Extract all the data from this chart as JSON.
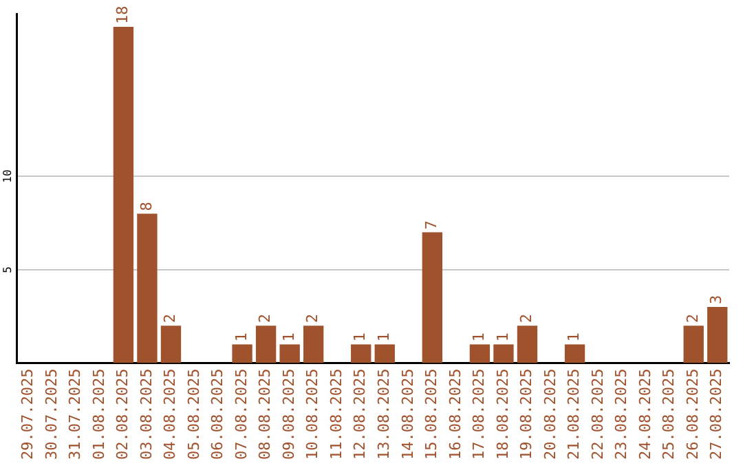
{
  "chart_data": {
    "type": "bar",
    "categories": [
      "29.07.2025",
      "30.07.2025",
      "31.07.2025",
      "01.08.2025",
      "02.08.2025",
      "03.08.2025",
      "04.08.2025",
      "05.08.2025",
      "06.08.2025",
      "07.08.2025",
      "08.08.2025",
      "09.08.2025",
      "10.08.2025",
      "11.08.2025",
      "12.08.2025",
      "13.08.2025",
      "14.08.2025",
      "15.08.2025",
      "16.08.2025",
      "17.08.2025",
      "18.08.2025",
      "19.08.2025",
      "20.08.2025",
      "21.08.2025",
      "22.08.2025",
      "23.08.2025",
      "24.08.2025",
      "25.08.2025",
      "26.08.2025",
      "27.08.2025"
    ],
    "values": [
      0,
      0,
      0,
      0,
      18,
      8,
      2,
      0,
      0,
      1,
      2,
      1,
      2,
      0,
      1,
      1,
      0,
      7,
      0,
      1,
      1,
      2,
      0,
      1,
      0,
      0,
      0,
      0,
      2,
      3
    ],
    "value_labels": [
      null,
      null,
      null,
      null,
      "18",
      "8",
      "2",
      null,
      null,
      "1",
      "2",
      "1",
      "2",
      null,
      "1",
      "1",
      null,
      "7",
      null,
      "1",
      "1",
      "2",
      null,
      "1",
      null,
      null,
      null,
      null,
      "2",
      "3"
    ],
    "color": "#a0522d",
    "ylim": [
      0,
      18.7
    ],
    "yticks": [
      5,
      10
    ],
    "grid": "y",
    "legend": false
  }
}
